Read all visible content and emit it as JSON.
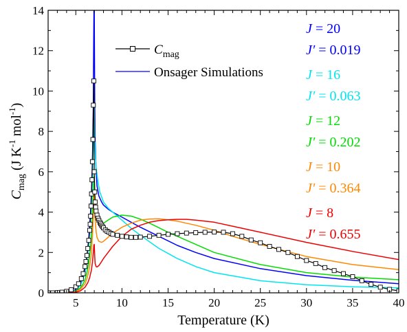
{
  "chart_data": {
    "type": "line",
    "xlabel": "Temperature (K)",
    "ylabel": {
      "main": "C",
      "sub": "mag",
      "units_a": " (J K",
      "sup1": "-1",
      "units_b": " mol",
      "sup2": "-1",
      "units_c": ")"
    },
    "xlim": [
      2,
      40
    ],
    "ylim": [
      0,
      14
    ],
    "xticks": [
      5,
      10,
      15,
      20,
      25,
      30,
      35,
      40
    ],
    "yticks": [
      0,
      2,
      4,
      6,
      8,
      10,
      12,
      14
    ],
    "legend": {
      "position": "upper-center",
      "entries": [
        {
          "label_main": "C",
          "label_sub": "mag",
          "style": "line-square-markers",
          "color": "#000000"
        },
        {
          "label_main": "Onsager Simulations",
          "label_sub": "",
          "style": "line",
          "color": "#0000ff"
        }
      ]
    },
    "annotations": [
      {
        "j": "J = 20",
        "jp": "J′ = 0.019",
        "color": "#0000ff"
      },
      {
        "j": "J = 16",
        "jp": "J′ = 0.063",
        "color": "#00e5ee"
      },
      {
        "j": "J = 12",
        "jp": "J′ = 0.202",
        "color": "#00dd00"
      },
      {
        "j": "J = 10",
        "jp": "J′ = 0.364",
        "color": "#ff8800"
      },
      {
        "j": "J = 8",
        "jp": "J′ = 0.655",
        "color": "#ee0000"
      }
    ],
    "measured": {
      "color": "#000000",
      "x": [
        2.0,
        2.5,
        3.0,
        3.5,
        4.0,
        4.5,
        5.0,
        5.3,
        5.6,
        5.8,
        6.0,
        6.1,
        6.2,
        6.3,
        6.4,
        6.5,
        6.55,
        6.6,
        6.65,
        6.7,
        6.75,
        6.8,
        6.85,
        6.9,
        6.95,
        7.0,
        7.05,
        7.1,
        7.15,
        7.2,
        7.3,
        7.4,
        7.5,
        7.6,
        7.7,
        7.8,
        7.9,
        8.0,
        8.2,
        8.4,
        8.6,
        8.8,
        9.0,
        9.5,
        10.0,
        10.5,
        11.0,
        11.5,
        12.0,
        13.0,
        14.0,
        15.0,
        16.0,
        17.0,
        18.0,
        19.0,
        20.0,
        21.0,
        22.0,
        23.0,
        24.0,
        25.0,
        26.0,
        27.0,
        28.0,
        29.0,
        30.0,
        31.0,
        32.0,
        33.0,
        34.0,
        35.0,
        36.0,
        37.0,
        38.0,
        39.0,
        40.0
      ],
      "y": [
        0.0,
        0.0,
        0.01,
        0.03,
        0.07,
        0.15,
        0.3,
        0.45,
        0.7,
        0.95,
        1.3,
        1.55,
        1.85,
        2.2,
        2.6,
        3.1,
        3.4,
        3.8,
        4.3,
        4.9,
        5.6,
        6.5,
        7.6,
        9.3,
        10.5,
        6.0,
        5.0,
        4.5,
        4.25,
        4.05,
        3.85,
        3.7,
        3.6,
        3.5,
        3.42,
        3.35,
        3.28,
        3.22,
        3.12,
        3.05,
        3.0,
        2.95,
        2.9,
        2.85,
        2.8,
        2.77,
        2.75,
        2.75,
        2.76,
        2.8,
        2.85,
        2.9,
        2.93,
        2.96,
        2.98,
        3.0,
        3.01,
        3.0,
        2.93,
        2.8,
        2.62,
        2.48,
        2.3,
        2.15,
        2.0,
        1.8,
        1.6,
        1.45,
        1.25,
        1.1,
        0.95,
        0.8,
        0.6,
        0.42,
        0.28,
        0.17,
        0.1
      ]
    },
    "simulations": [
      {
        "color": "#0000ff",
        "x": [
          2.0,
          3.0,
          4.0,
          4.5,
          5.0,
          5.5,
          5.8,
          6.0,
          6.2,
          6.4,
          6.6,
          6.7,
          6.8,
          6.85,
          6.9,
          6.92,
          6.94,
          6.96,
          6.98,
          7.0,
          7.02,
          7.05,
          7.1,
          7.2,
          7.3,
          7.5,
          7.8,
          8.0,
          8.5,
          9.0,
          10.0,
          11.0,
          12.0,
          14.0,
          16.0,
          18.0,
          20.0,
          25.0,
          30.0,
          35.0,
          40.0
        ],
        "y": [
          0.0,
          0.0,
          0.01,
          0.05,
          0.15,
          0.45,
          0.8,
          1.2,
          1.8,
          2.7,
          4.0,
          5.0,
          6.5,
          7.8,
          9.5,
          11.0,
          12.5,
          13.8,
          14.5,
          14.2,
          12.0,
          9.5,
          7.5,
          6.0,
          5.3,
          4.8,
          4.5,
          4.35,
          4.15,
          4.0,
          3.75,
          3.5,
          3.25,
          2.8,
          2.35,
          2.0,
          1.7,
          1.2,
          0.85,
          0.62,
          0.45
        ]
      },
      {
        "color": "#00e5ee",
        "x": [
          2.0,
          3.0,
          4.0,
          4.5,
          5.0,
          5.5,
          5.8,
          6.0,
          6.2,
          6.4,
          6.6,
          6.7,
          6.8,
          6.85,
          6.9,
          6.95,
          6.98,
          7.0,
          7.02,
          7.05,
          7.1,
          7.2,
          7.4,
          7.6,
          8.0,
          8.5,
          9.0,
          10.0,
          11.0,
          12.0,
          14.0,
          16.0,
          18.0,
          20.0,
          25.0,
          30.0,
          35.0,
          40.0
        ],
        "y": [
          0.0,
          0.0,
          0.01,
          0.04,
          0.12,
          0.38,
          0.7,
          1.0,
          1.55,
          2.3,
          3.5,
          4.3,
          5.5,
          6.4,
          7.5,
          8.8,
          9.3,
          9.0,
          8.3,
          7.6,
          7.0,
          6.2,
          5.5,
          5.0,
          4.5,
          4.2,
          4.0,
          3.6,
          3.2,
          2.85,
          2.2,
          1.7,
          1.3,
          1.0,
          0.6,
          0.4,
          0.3,
          0.25
        ]
      },
      {
        "color": "#00dd00",
        "x": [
          2.0,
          3.0,
          4.0,
          4.5,
          5.0,
          5.5,
          5.8,
          6.0,
          6.2,
          6.4,
          6.6,
          6.7,
          6.8,
          6.9,
          6.95,
          7.0,
          7.05,
          7.1,
          7.2,
          7.3,
          7.5,
          7.8,
          8.0,
          8.5,
          9.0,
          10.0,
          11.0,
          12.0,
          13.0,
          15.0,
          20.0,
          25.0,
          30.0,
          35.0,
          40.0
        ],
        "y": [
          0.0,
          0.0,
          0.01,
          0.03,
          0.08,
          0.25,
          0.45,
          0.65,
          1.0,
          1.5,
          2.3,
          3.0,
          3.8,
          5.0,
          5.7,
          5.8,
          5.0,
          4.5,
          3.95,
          3.7,
          3.5,
          3.45,
          3.45,
          3.6,
          3.75,
          3.85,
          3.8,
          3.65,
          3.45,
          3.0,
          2.0,
          1.4,
          1.0,
          0.78,
          0.65
        ]
      },
      {
        "color": "#ff8800",
        "x": [
          2.0,
          3.0,
          4.0,
          4.5,
          5.0,
          5.5,
          6.0,
          6.2,
          6.4,
          6.6,
          6.7,
          6.8,
          6.9,
          6.95,
          7.0,
          7.05,
          7.1,
          7.2,
          7.3,
          7.5,
          7.8,
          8.0,
          8.5,
          9.0,
          10.0,
          11.0,
          12.0,
          13.0,
          14.0,
          15.0,
          16.0,
          18.0,
          20.0,
          22.0,
          25.0,
          30.0,
          35.0,
          40.0
        ],
        "y": [
          0.0,
          0.0,
          0.0,
          0.02,
          0.06,
          0.18,
          0.45,
          0.7,
          1.05,
          1.6,
          2.1,
          2.8,
          3.8,
          4.6,
          4.9,
          4.2,
          3.6,
          3.05,
          2.75,
          2.55,
          2.5,
          2.55,
          2.75,
          2.95,
          3.25,
          3.45,
          3.6,
          3.66,
          3.67,
          3.62,
          3.55,
          3.35,
          3.1,
          2.8,
          2.4,
          1.8,
          1.4,
          1.15
        ]
      },
      {
        "color": "#ee0000",
        "x": [
          2.0,
          3.0,
          4.0,
          5.0,
          5.5,
          6.0,
          6.3,
          6.5,
          6.7,
          6.8,
          6.9,
          6.95,
          7.0,
          7.05,
          7.1,
          7.2,
          7.3,
          7.5,
          7.8,
          8.0,
          8.5,
          9.0,
          10.0,
          11.0,
          12.0,
          13.0,
          14.0,
          15.0,
          16.0,
          17.0,
          18.0,
          19.0,
          20.0,
          22.0,
          25.0,
          30.0,
          35.0,
          40.0
        ],
        "y": [
          0.0,
          0.0,
          0.0,
          0.03,
          0.1,
          0.28,
          0.5,
          0.75,
          1.15,
          1.5,
          2.0,
          2.35,
          2.4,
          1.8,
          1.45,
          1.3,
          1.28,
          1.35,
          1.55,
          1.7,
          2.0,
          2.3,
          2.8,
          3.15,
          3.35,
          3.5,
          3.58,
          3.62,
          3.64,
          3.64,
          3.6,
          3.55,
          3.5,
          3.3,
          3.0,
          2.5,
          2.05,
          1.65
        ]
      }
    ]
  }
}
